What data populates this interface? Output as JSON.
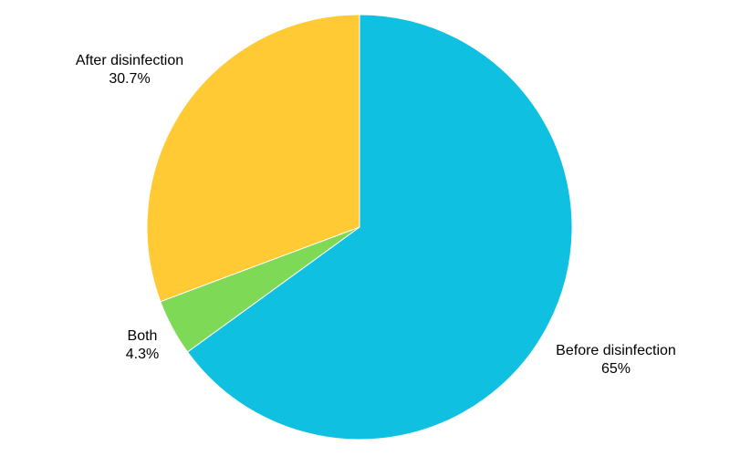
{
  "chart_data": {
    "type": "pie",
    "title": "",
    "slices": [
      {
        "label": "Before disinfection",
        "value": 65,
        "value_label": "65%",
        "color": "#0fc0e0"
      },
      {
        "label": "Both",
        "value": 4.3,
        "value_label": "4.3%",
        "color": "#7ed957"
      },
      {
        "label": "After disinfection",
        "value": 30.7,
        "value_label": "30.7%",
        "color": "#ffca33"
      }
    ],
    "start_angle": "12 o'clock",
    "direction": "clockwise",
    "legend": "none"
  }
}
